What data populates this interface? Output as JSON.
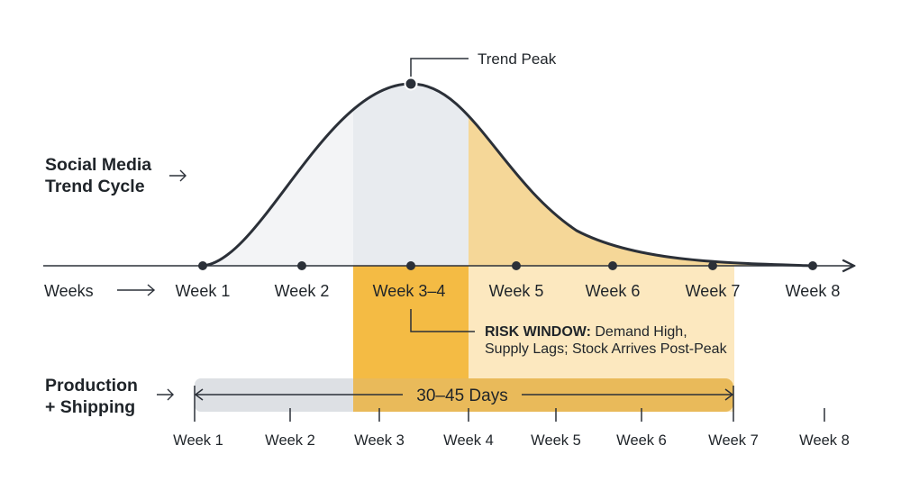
{
  "trend": {
    "title_line1": "Social Media",
    "title_line2": "Trend Cycle",
    "axis_label": "Weeks",
    "weeks": [
      "Week 1",
      "Week 2",
      "Week 3–4",
      "Week 5",
      "Week 6",
      "Week 7",
      "Week 8"
    ],
    "peak_label": "Trend Peak"
  },
  "risk": {
    "label_bold": "RISK WINDOW:",
    "label_line1": "Demand High,",
    "label_line2": "Supply Lags; Stock Arrives Post-Peak"
  },
  "production": {
    "title_line1": "Production",
    "title_line2": "+ Shipping",
    "duration": "30–45 Days",
    "weeks": [
      "Week 1",
      "Week 2",
      "Week 3",
      "Week 4",
      "Week 5",
      "Week 6",
      "Week 7",
      "Week 8"
    ]
  },
  "colors": {
    "ink": "#2b3038",
    "risk_orange": "#f4bb44",
    "risk_light": "#fce8bf",
    "tail_fill": "#f5d798",
    "peak_fill": "#e8ebef",
    "rise_fill": "#f3f4f6",
    "bar_gray": "#dde0e4",
    "bar_yellow": "#e9ba5a"
  }
}
